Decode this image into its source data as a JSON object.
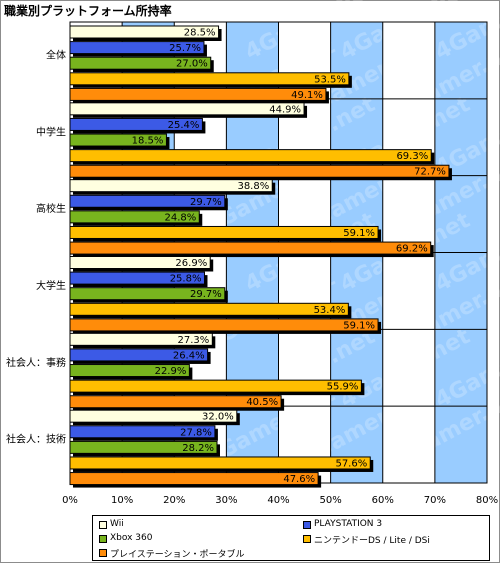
{
  "page": {
    "title": "職業別プラットフォーム所持率"
  },
  "chart_data": {
    "type": "bar",
    "orientation": "horizontal",
    "title": "職業別プラットフォーム所持率",
    "categories": [
      "全体",
      "中学生",
      "高校生",
      "大学生",
      "社会人：事務",
      "社会人：技術"
    ],
    "series": [
      {
        "name": "Wii",
        "color": "#ffffe0",
        "values": [
          28.5,
          44.9,
          38.8,
          26.9,
          27.3,
          32.0
        ]
      },
      {
        "name": "PLAYSTATION 3",
        "color": "#3c5ae6",
        "values": [
          25.7,
          25.4,
          29.7,
          25.8,
          26.4,
          27.8
        ]
      },
      {
        "name": "Xbox 360",
        "color": "#78b41e",
        "values": [
          27.0,
          18.5,
          24.8,
          29.7,
          22.9,
          28.2
        ]
      },
      {
        "name": "ニンテンドーDS / Lite / DSi",
        "color": "#ffbe00",
        "values": [
          53.5,
          69.3,
          59.1,
          53.4,
          55.9,
          57.6
        ]
      },
      {
        "name": "プレイステーション・ポータブル",
        "color": "#ff8c0a",
        "values": [
          49.1,
          72.7,
          69.2,
          59.1,
          40.5,
          47.6
        ]
      }
    ],
    "value_labels": [
      [
        "28.5%",
        "25.7%",
        "27.0%",
        "53.5%",
        "49.1%"
      ],
      [
        "44.9%",
        "25.4%",
        "18.5%",
        "69.3%",
        "72.7%"
      ],
      [
        "38.8%",
        "29.7%",
        "24.8%",
        "59.1%",
        "69.2%"
      ],
      [
        "26.9%",
        "25.8%",
        "29.7%",
        "53.4%",
        "59.1%"
      ],
      [
        "27.3%",
        "26.4%",
        "22.9%",
        "55.9%",
        "40.5%"
      ],
      [
        "32.0%",
        "27.8%",
        "28.2%",
        "57.6%",
        "47.6%"
      ]
    ],
    "xlim": [
      0,
      80
    ],
    "xticks": [
      "0%",
      "10%",
      "20%",
      "30%",
      "40%",
      "50%",
      "60%",
      "70%",
      "80%"
    ],
    "alternating_band_colors": [
      "#ffffff",
      "#99ccff"
    ],
    "watermark": "4Gamer.net",
    "legend_position": "bottom"
  }
}
